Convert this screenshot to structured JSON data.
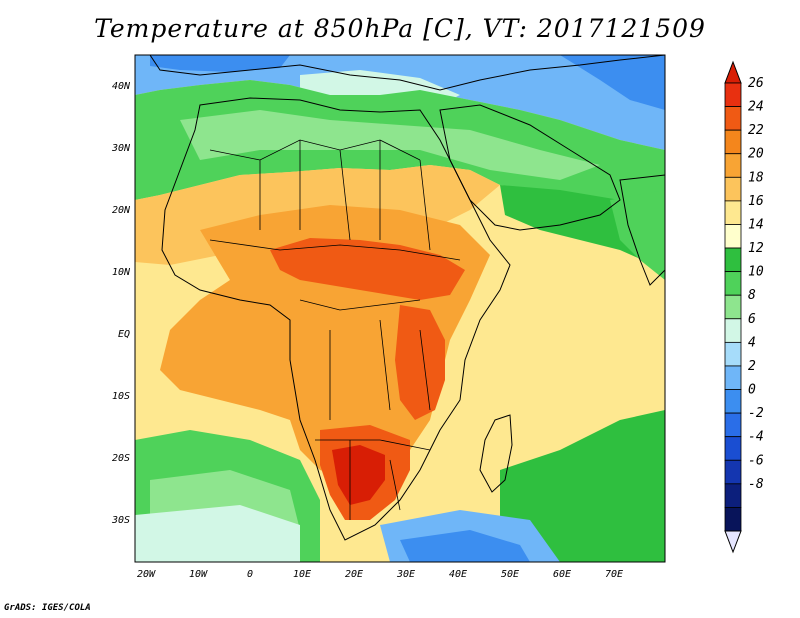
{
  "title": "Temperature at 850hPa [C], VT: 2017121509",
  "footer": "GrADS: IGES/COLA",
  "lat_ticks": [
    "40N",
    "30N",
    "20N",
    "10N",
    "EQ",
    "10S",
    "20S",
    "30S"
  ],
  "lon_ticks": [
    "20W",
    "10W",
    "0",
    "10E",
    "20E",
    "30E",
    "40E",
    "50E",
    "60E",
    "70E"
  ],
  "colorbar": {
    "labels": [
      "26",
      "24",
      "22",
      "20",
      "18",
      "16",
      "14",
      "12",
      "10",
      "8",
      "6",
      "4",
      "2",
      "0",
      "-2",
      "-4",
      "-6",
      "-8"
    ],
    "colors": [
      "#e83010",
      "#f05a14",
      "#f4861c",
      "#f8a434",
      "#fcc45c",
      "#fee890",
      "#ffffcc",
      "#2fbf3f",
      "#4fd25a",
      "#8ee58e",
      "#d2f7e6",
      "#a6dcfa",
      "#6fb6f8",
      "#3c8ef0",
      "#2a6ee8",
      "#1a4ed2",
      "#1436b0",
      "#0c1f7c",
      "#08145a"
    ],
    "top_arrow_color": "#d81e05",
    "bottom_arrow_color": "#e6e6ff"
  },
  "map": {
    "colors": {
      "ocean_default": "#fee890",
      "warm": "#f8a434",
      "hot": "#f05a14",
      "hottest": "#d81e05",
      "cool_green": "#2fbf3f",
      "light_green": "#8ee58e",
      "pale": "#d2f7e6",
      "blue": "#6fb6f8",
      "deep_blue": "#3c8ef0"
    }
  }
}
